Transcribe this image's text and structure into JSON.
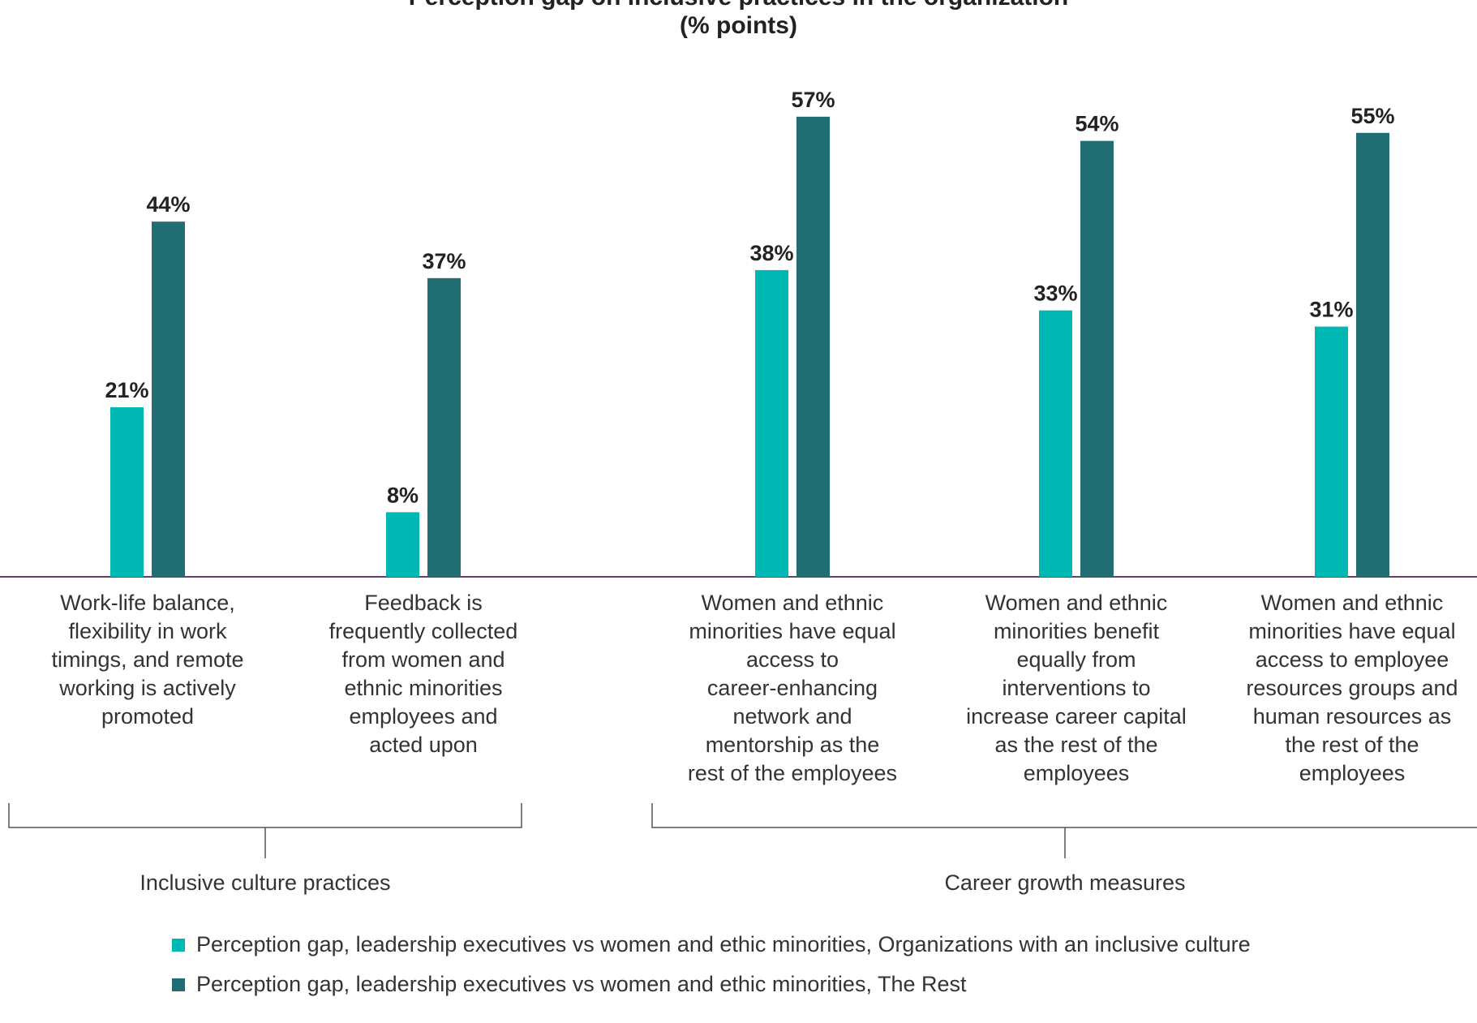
{
  "title_line1": "Perception gap on inclusive practices in the organization",
  "title_line2": "(% points)",
  "colors": {
    "series1": "#00B8B3",
    "series2": "#216D74",
    "axis": "#6b3b6e",
    "bracket": "#555555"
  },
  "chart_data": {
    "type": "bar",
    "categories": [
      "Work-life balance, flexibility in work timings, and remote working is actively promoted",
      "Feedback is frequently collected from women and ethnic minorities employees and acted upon",
      "Women and ethnic minorities have equal access to career-enhancing network and mentorship as the rest of the employees",
      "Women and ethnic minorities benefit equally from interventions to increase career capital as the rest of the employees",
      "Women and ethnic minorities have equal access to employee resources groups and human resources as the rest of the employees"
    ],
    "series": [
      {
        "name": "Perception gap, leadership executives vs women and ethic minorities, Organizations with an inclusive culture",
        "values": [
          21,
          8,
          38,
          33,
          31
        ],
        "labels": [
          "21%",
          "8%",
          "38%",
          "33%",
          "31%"
        ]
      },
      {
        "name": "Perception gap, leadership executives vs women and ethic minorities, The Rest",
        "values": [
          44,
          37,
          57,
          54,
          55
        ],
        "labels": [
          "44%",
          "37%",
          "57%",
          "54%",
          "55%"
        ]
      }
    ],
    "groups": [
      {
        "label": "Inclusive culture practices",
        "categories": [
          0,
          1
        ]
      },
      {
        "label": "Career growth measures",
        "categories": [
          2,
          3,
          4
        ]
      }
    ],
    "ylim": [
      0,
      60
    ]
  },
  "category_label_lines": [
    [
      "Work-life balance,",
      "flexibility in work",
      "timings, and remote",
      "working is actively",
      "promoted"
    ],
    [
      "Feedback is",
      "frequently collected",
      "from women and",
      "ethnic minorities",
      "employees and",
      "acted upon"
    ],
    [
      "Women and ethnic",
      "minorities have equal",
      "access to",
      "career-enhancing",
      "network and",
      "mentorship as the",
      "rest of the employees"
    ],
    [
      "Women and ethnic",
      "minorities benefit",
      "equally from",
      "interventions to",
      "increase career capital",
      "as the rest of the",
      "employees"
    ],
    [
      "Women and ethnic",
      "minorities have equal",
      "access to employee",
      "resources groups and",
      "human resources as",
      "the rest of the",
      "employees"
    ]
  ]
}
